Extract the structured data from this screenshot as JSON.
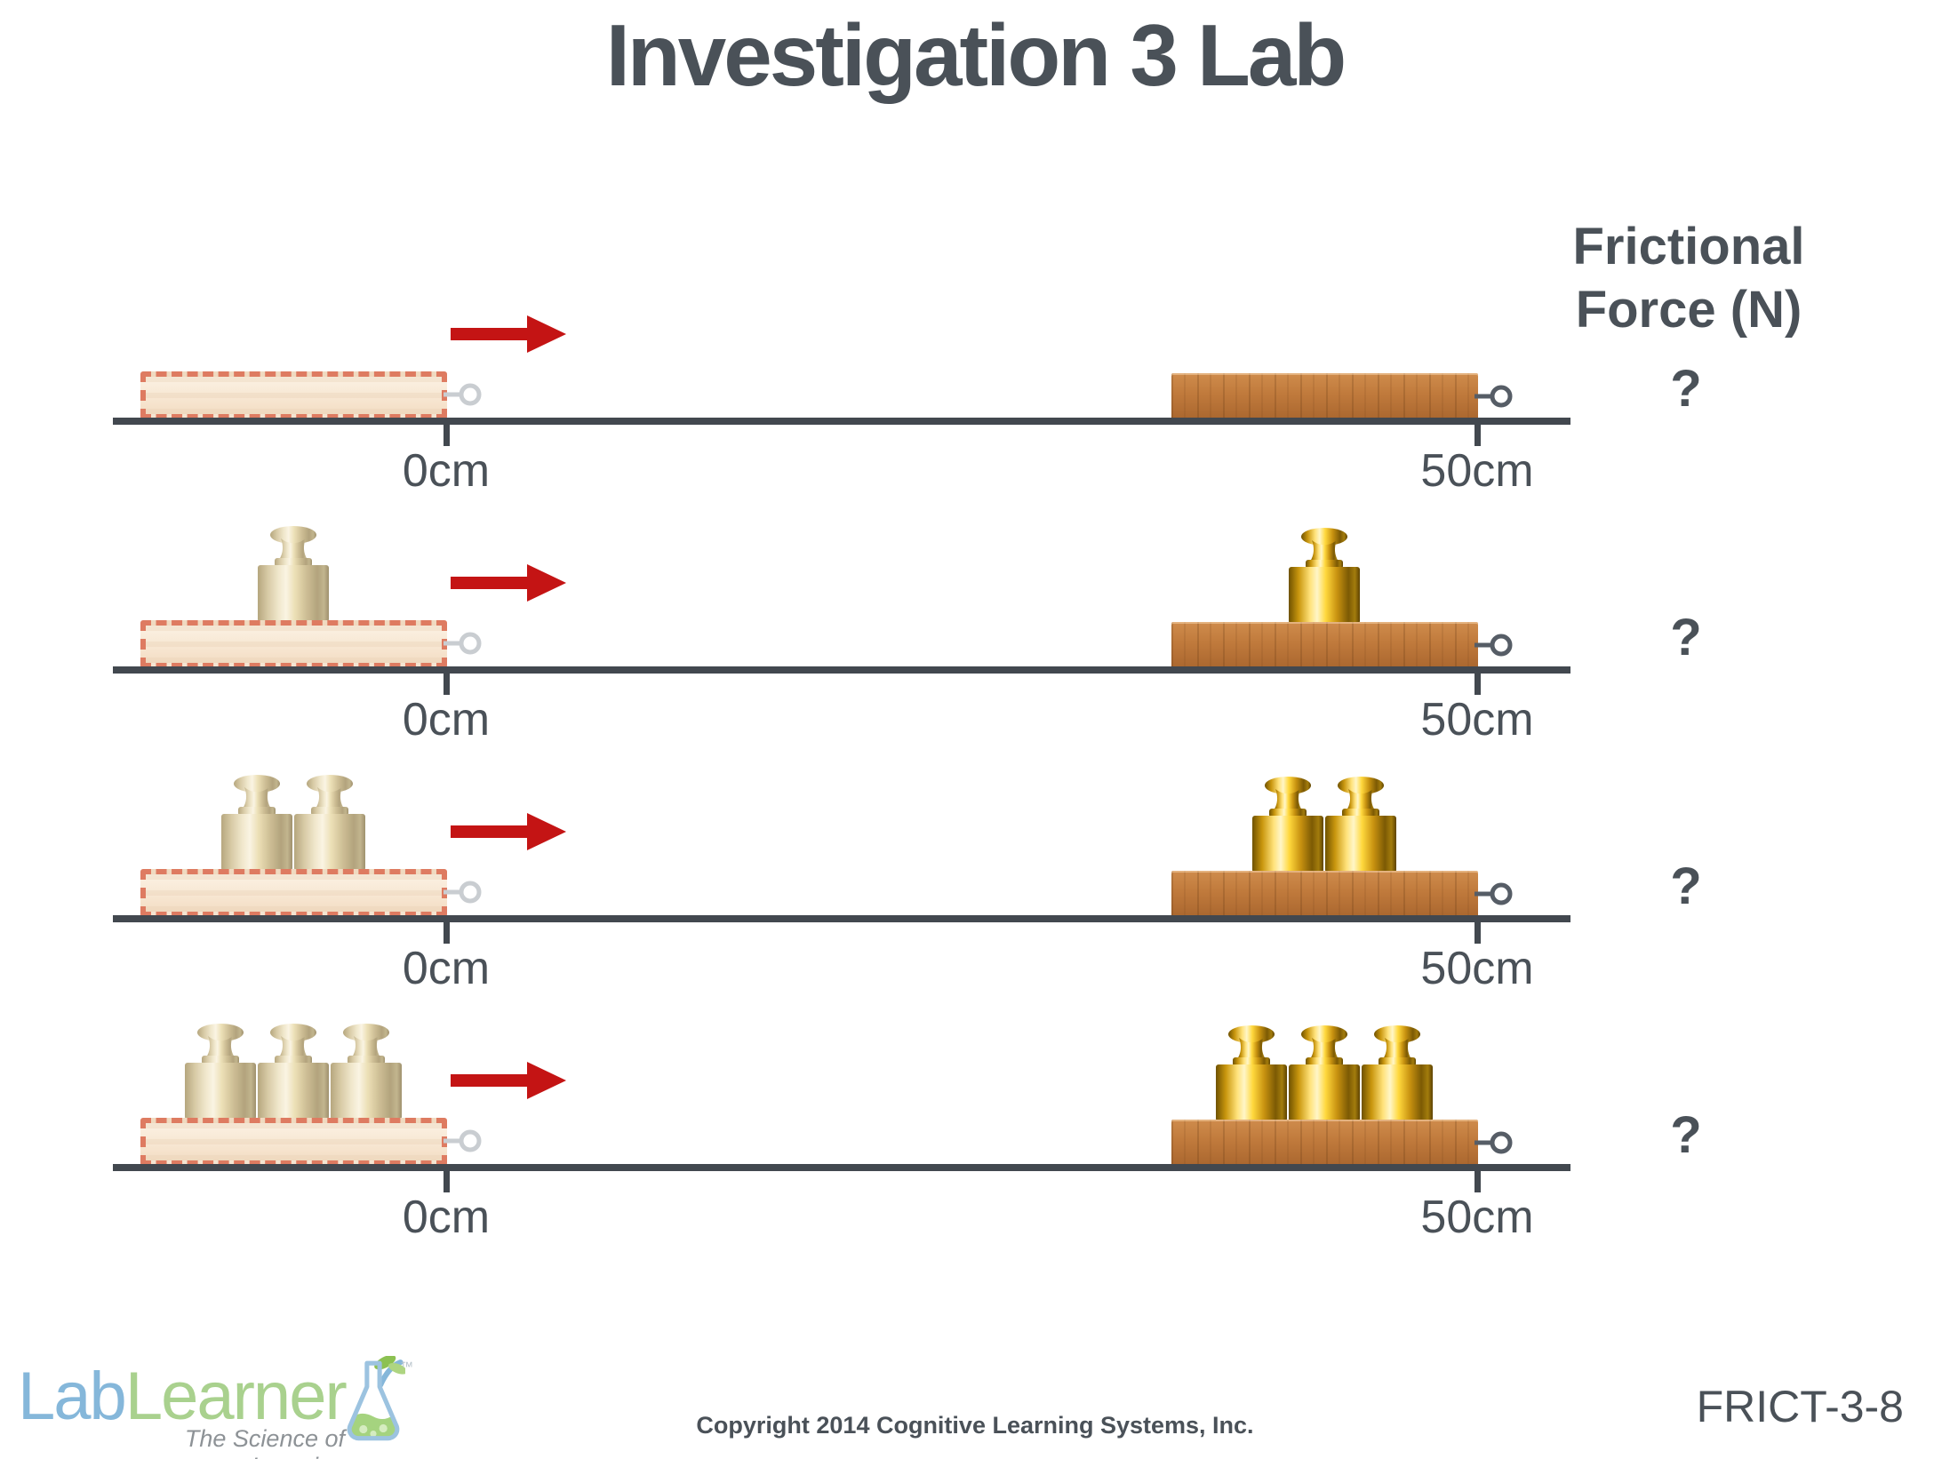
{
  "title": "Investigation 3 Lab",
  "header": {
    "line1": "Frictional",
    "line2": "Force (N)"
  },
  "rows": [
    {
      "weights": 0,
      "start_label": "0cm",
      "end_label": "50cm",
      "frictional_force": "?"
    },
    {
      "weights": 1,
      "start_label": "0cm",
      "end_label": "50cm",
      "frictional_force": "?"
    },
    {
      "weights": 2,
      "start_label": "0cm",
      "end_label": "50cm",
      "frictional_force": "?"
    },
    {
      "weights": 3,
      "start_label": "0cm",
      "end_label": "50cm",
      "frictional_force": "?"
    }
  ],
  "footer": {
    "logo_lab": "Lab",
    "logo_learner": "Learner",
    "trademark": "™",
    "tagline": "The Science of Learning",
    "copyright": "Copyright 2014 Cognitive Learning Systems, Inc.",
    "code": "FRICT-3-8"
  },
  "colors": {
    "text": "#4a5158",
    "track": "#42484f",
    "arrow_red": "#c41414",
    "ghost_fill": "#f8e9d8",
    "ghost_border": "#de7b61",
    "wood": "#c07a3c",
    "gold": "#e8b923",
    "faded_brass": "#d6c8a2",
    "logo_blue": "#85b7da",
    "logo_green": "#a9d18e"
  }
}
